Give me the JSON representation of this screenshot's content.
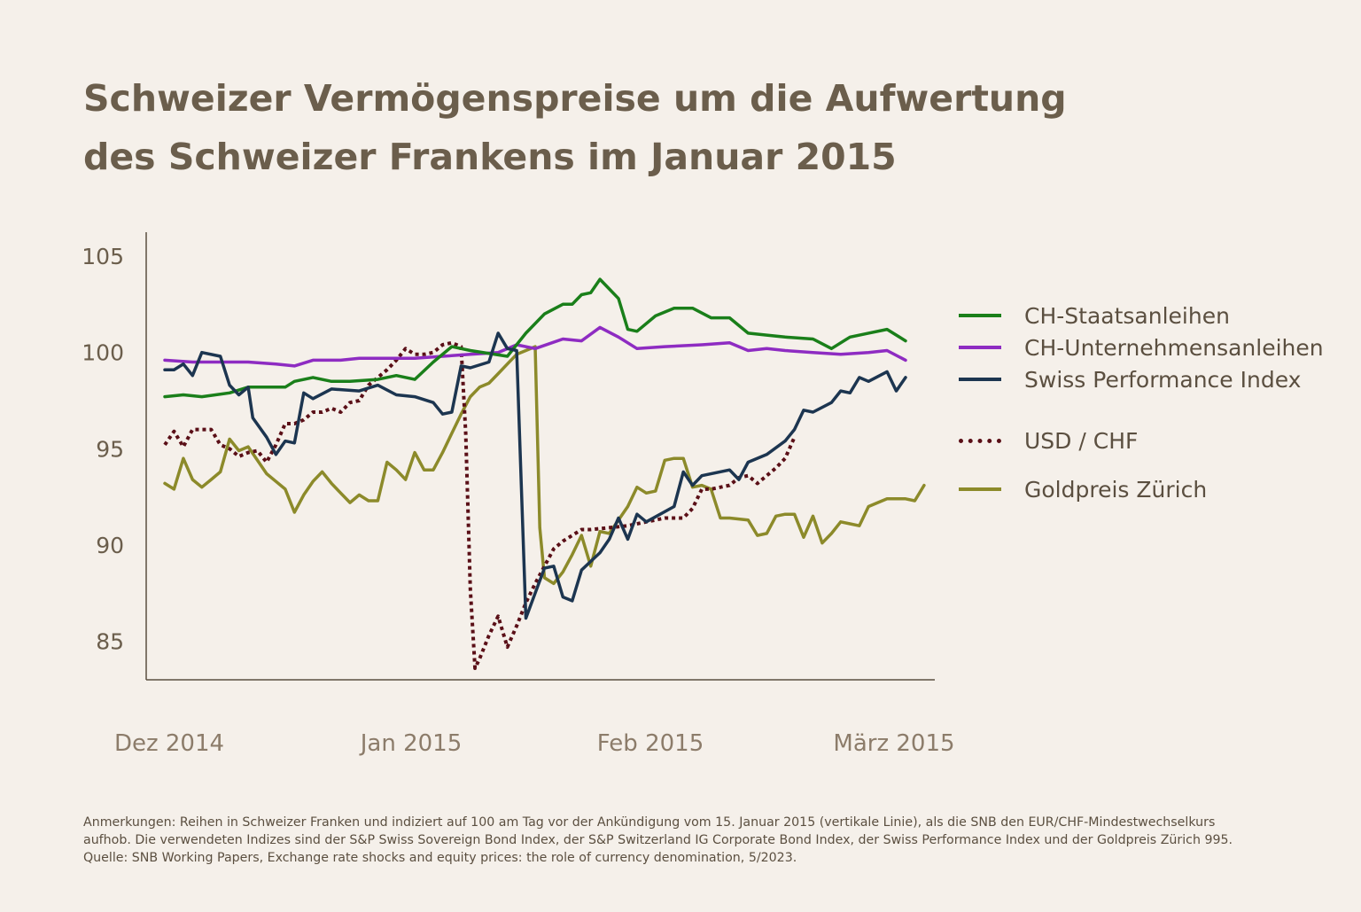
{
  "title_line1": "Schweizer Vermögenspreise um die Aufwertung",
  "title_line2": "des Schweizer Frankens im Januar 2015",
  "footer": {
    "line1": "Anmerkungen: Reihen in Schweizer Franken und indiziert auf 100 am Tag vor der Ankündigung vom 15. Januar 2015 (vertikale Linie), als die SNB den EUR/CHF-Mindestwechselkurs",
    "line2": "aufhob. Die verwendeten Indizes sind der S&P Swiss Sovereign Bond Index, der S&P Switzerland IG Corporate Bond Index, der Swiss Performance Index und der Goldpreis Zürich 995.",
    "line3": "Quelle: SNB Working Papers, Exchange rate shocks and equity prices: the role of currency denomination, 5/2023."
  },
  "chart_data": {
    "type": "line",
    "title": "Schweizer Vermögenspreise um die Aufwertung des Schweizer Frankens im Januar 2015",
    "xlabel": "",
    "ylabel": "",
    "x_tick_labels": [
      "Dez 2014",
      "Jan 2015",
      "Feb 2015",
      "März 2015"
    ],
    "y_ticks": [
      85,
      90,
      95,
      100,
      105
    ],
    "ylim": [
      83,
      105.6
    ],
    "legend_position": "right",
    "series": [
      {
        "name": "CH-Staatsanleihen",
        "color": "#1a7f1a",
        "style": "solid",
        "points": [
          [
            0,
            97.7
          ],
          [
            2,
            97.8
          ],
          [
            4,
            97.7
          ],
          [
            7,
            97.9
          ],
          [
            9,
            98.2
          ],
          [
            11,
            98.2
          ],
          [
            13,
            98.2
          ],
          [
            14,
            98.5
          ],
          [
            16,
            98.7
          ],
          [
            18,
            98.5
          ],
          [
            20,
            98.5
          ],
          [
            23,
            98.6
          ],
          [
            25,
            98.8
          ],
          [
            27,
            98.6
          ],
          [
            29,
            99.5
          ],
          [
            31,
            100.3
          ],
          [
            33,
            100.1
          ],
          [
            37,
            99.8
          ],
          [
            39,
            101.0
          ],
          [
            41,
            102.0
          ],
          [
            43,
            102.5
          ],
          [
            44,
            102.5
          ],
          [
            45,
            103.0
          ],
          [
            46,
            103.1
          ],
          [
            47,
            103.8
          ],
          [
            48,
            103.3
          ],
          [
            49,
            102.8
          ],
          [
            50,
            101.2
          ],
          [
            51,
            101.1
          ],
          [
            53,
            101.9
          ],
          [
            55,
            102.3
          ],
          [
            57,
            102.3
          ],
          [
            59,
            101.8
          ],
          [
            61,
            101.8
          ],
          [
            63,
            101.0
          ],
          [
            65,
            100.9
          ],
          [
            67,
            100.8
          ],
          [
            70,
            100.7
          ],
          [
            72,
            100.2
          ],
          [
            74,
            100.8
          ],
          [
            76,
            101.0
          ],
          [
            78,
            101.2
          ],
          [
            80,
            100.6
          ]
        ]
      },
      {
        "name": "CH-Unternehmensanleihen",
        "color": "#8e2cc2",
        "style": "solid",
        "points": [
          [
            0,
            99.6
          ],
          [
            3,
            99.5
          ],
          [
            6,
            99.5
          ],
          [
            9,
            99.5
          ],
          [
            12,
            99.4
          ],
          [
            14,
            99.3
          ],
          [
            16,
            99.6
          ],
          [
            19,
            99.6
          ],
          [
            21,
            99.7
          ],
          [
            24,
            99.7
          ],
          [
            27,
            99.7
          ],
          [
            30,
            99.8
          ],
          [
            33,
            99.9
          ],
          [
            36,
            100.0
          ],
          [
            38,
            100.4
          ],
          [
            40,
            100.2
          ],
          [
            43,
            100.7
          ],
          [
            45,
            100.6
          ],
          [
            47,
            101.3
          ],
          [
            49,
            100.8
          ],
          [
            51,
            100.2
          ],
          [
            54,
            100.3
          ],
          [
            58,
            100.4
          ],
          [
            61,
            100.5
          ],
          [
            63,
            100.1
          ],
          [
            65,
            100.2
          ],
          [
            67,
            100.1
          ],
          [
            70,
            100.0
          ],
          [
            73,
            99.9
          ],
          [
            76,
            100.0
          ],
          [
            78,
            100.1
          ],
          [
            80,
            99.6
          ]
        ]
      },
      {
        "name": "Swiss Performance Index",
        "color": "#1c3550",
        "style": "solid",
        "points": [
          [
            0,
            99.1
          ],
          [
            1,
            99.1
          ],
          [
            2,
            99.4
          ],
          [
            3,
            98.8
          ],
          [
            4,
            100.0
          ],
          [
            6,
            99.8
          ],
          [
            7,
            98.3
          ],
          [
            8,
            97.8
          ],
          [
            9,
            98.2
          ],
          [
            9.5,
            96.6
          ],
          [
            11,
            95.6
          ],
          [
            12,
            94.7
          ],
          [
            13,
            95.4
          ],
          [
            14,
            95.3
          ],
          [
            15,
            97.9
          ],
          [
            16,
            97.6
          ],
          [
            18,
            98.1
          ],
          [
            21,
            98.0
          ],
          [
            23,
            98.3
          ],
          [
            25,
            97.8
          ],
          [
            27,
            97.7
          ],
          [
            29,
            97.4
          ],
          [
            30,
            96.8
          ],
          [
            31,
            96.9
          ],
          [
            32,
            99.3
          ],
          [
            33,
            99.2
          ],
          [
            35,
            99.5
          ],
          [
            36,
            101.0
          ],
          [
            37,
            100.2
          ],
          [
            38,
            100.1
          ],
          [
            39,
            86.2
          ],
          [
            40,
            87.5
          ],
          [
            41,
            88.8
          ],
          [
            42,
            88.9
          ],
          [
            43,
            87.3
          ],
          [
            44,
            87.1
          ],
          [
            45,
            88.7
          ],
          [
            47,
            89.6
          ],
          [
            48,
            90.3
          ],
          [
            49,
            91.4
          ],
          [
            50,
            90.3
          ],
          [
            51,
            91.6
          ],
          [
            52,
            91.2
          ],
          [
            55,
            92.0
          ],
          [
            56,
            93.8
          ],
          [
            57,
            93.1
          ],
          [
            58,
            93.6
          ],
          [
            61,
            93.9
          ],
          [
            62,
            93.4
          ],
          [
            63,
            94.3
          ],
          [
            65,
            94.7
          ],
          [
            67,
            95.4
          ],
          [
            68,
            96.0
          ],
          [
            69,
            97.0
          ],
          [
            70,
            96.9
          ],
          [
            72,
            97.4
          ],
          [
            73,
            98.0
          ],
          [
            74,
            97.9
          ],
          [
            75,
            98.7
          ],
          [
            76,
            98.5
          ],
          [
            78,
            99.0
          ],
          [
            79,
            98.0
          ],
          [
            80,
            98.7
          ]
        ]
      },
      {
        "name": "USD / CHF",
        "color": "#5a0f17",
        "style": "dotted",
        "points": [
          [
            0,
            95.2
          ],
          [
            1,
            95.9
          ],
          [
            2,
            95.1
          ],
          [
            3,
            96.0
          ],
          [
            4,
            96.0
          ],
          [
            5,
            96.0
          ],
          [
            6,
            95.2
          ],
          [
            7,
            95.0
          ],
          [
            8,
            94.6
          ],
          [
            9,
            94.8
          ],
          [
            10,
            94.9
          ],
          [
            11,
            94.3
          ],
          [
            12,
            95.2
          ],
          [
            13,
            96.3
          ],
          [
            14,
            96.3
          ],
          [
            15,
            96.5
          ],
          [
            16,
            96.9
          ],
          [
            17,
            96.9
          ],
          [
            18,
            97.1
          ],
          [
            19,
            96.9
          ],
          [
            20,
            97.4
          ],
          [
            21,
            97.5
          ],
          [
            22,
            98.3
          ],
          [
            23,
            98.7
          ],
          [
            24,
            99.1
          ],
          [
            25,
            99.6
          ],
          [
            26,
            100.2
          ],
          [
            27,
            99.9
          ],
          [
            28,
            99.9
          ],
          [
            29,
            100.0
          ],
          [
            30,
            100.4
          ],
          [
            31,
            100.5
          ],
          [
            32,
            100.3
          ],
          [
            32.5,
            95.8
          ],
          [
            33,
            87.7
          ],
          [
            33.5,
            83.6
          ],
          [
            34,
            84.1
          ],
          [
            35,
            85.3
          ],
          [
            36,
            86.3
          ],
          [
            37,
            84.7
          ],
          [
            38,
            85.8
          ],
          [
            39,
            87.0
          ],
          [
            40,
            88.0
          ],
          [
            41,
            88.9
          ],
          [
            42,
            89.8
          ],
          [
            43,
            90.2
          ],
          [
            44,
            90.5
          ],
          [
            45,
            90.8
          ],
          [
            46,
            90.8
          ],
          [
            48,
            90.9
          ],
          [
            50,
            91.0
          ],
          [
            52,
            91.2
          ],
          [
            53,
            91.3
          ],
          [
            54,
            91.4
          ],
          [
            56,
            91.4
          ],
          [
            57,
            91.9
          ],
          [
            58,
            92.9
          ],
          [
            59,
            92.9
          ],
          [
            60,
            93.0
          ],
          [
            61,
            93.1
          ],
          [
            62,
            93.5
          ],
          [
            63,
            93.6
          ],
          [
            64,
            93.2
          ],
          [
            65,
            93.6
          ],
          [
            66,
            94.0
          ],
          [
            67,
            94.5
          ],
          [
            68,
            95.6
          ]
        ]
      },
      {
        "name": "Goldpreis Zürich",
        "color": "#8c8a2a",
        "style": "solid",
        "points": [
          [
            0,
            93.2
          ],
          [
            1,
            92.9
          ],
          [
            2,
            94.5
          ],
          [
            3,
            93.4
          ],
          [
            4,
            93.0
          ],
          [
            5,
            93.4
          ],
          [
            6,
            93.8
          ],
          [
            7,
            95.5
          ],
          [
            8,
            94.9
          ],
          [
            9,
            95.1
          ],
          [
            10,
            94.4
          ],
          [
            11,
            93.7
          ],
          [
            12,
            93.3
          ],
          [
            13,
            92.9
          ],
          [
            14,
            91.7
          ],
          [
            15,
            92.6
          ],
          [
            16,
            93.3
          ],
          [
            17,
            93.8
          ],
          [
            18,
            93.2
          ],
          [
            19,
            92.7
          ],
          [
            20,
            92.2
          ],
          [
            21,
            92.6
          ],
          [
            22,
            92.3
          ],
          [
            23,
            92.3
          ],
          [
            24,
            94.3
          ],
          [
            25,
            93.9
          ],
          [
            26,
            93.4
          ],
          [
            27,
            94.8
          ],
          [
            28,
            93.9
          ],
          [
            29,
            93.9
          ],
          [
            30,
            94.8
          ],
          [
            31,
            95.8
          ],
          [
            32,
            96.8
          ],
          [
            33,
            97.7
          ],
          [
            34,
            98.2
          ],
          [
            35,
            98.4
          ],
          [
            36,
            98.9
          ],
          [
            37,
            99.4
          ],
          [
            38,
            99.9
          ],
          [
            39,
            100.1
          ],
          [
            40,
            100.3
          ],
          [
            40.5,
            90.9
          ],
          [
            41,
            88.3
          ],
          [
            42,
            88.0
          ],
          [
            43,
            88.6
          ],
          [
            44,
            89.5
          ],
          [
            45,
            90.5
          ],
          [
            46,
            88.9
          ],
          [
            47,
            90.7
          ],
          [
            48,
            90.6
          ],
          [
            49,
            91.3
          ],
          [
            50,
            92.0
          ],
          [
            51,
            93.0
          ],
          [
            52,
            92.7
          ],
          [
            53,
            92.8
          ],
          [
            54,
            94.4
          ],
          [
            55,
            94.5
          ],
          [
            56,
            94.5
          ],
          [
            57,
            93.0
          ],
          [
            58,
            93.1
          ],
          [
            59,
            92.9
          ],
          [
            60,
            91.4
          ],
          [
            61,
            91.4
          ],
          [
            63,
            91.3
          ],
          [
            64,
            90.5
          ],
          [
            65,
            90.6
          ],
          [
            66,
            91.5
          ],
          [
            67,
            91.6
          ],
          [
            68,
            91.6
          ],
          [
            69,
            90.4
          ],
          [
            70,
            91.5
          ],
          [
            71,
            90.1
          ],
          [
            72,
            90.6
          ],
          [
            73,
            91.2
          ],
          [
            74,
            91.1
          ],
          [
            75,
            91.0
          ],
          [
            76,
            92.0
          ],
          [
            77,
            92.2
          ],
          [
            78,
            92.4
          ],
          [
            79,
            92.4
          ],
          [
            80,
            92.4
          ],
          [
            81,
            92.3
          ],
          [
            82,
            93.1
          ]
        ]
      }
    ]
  }
}
